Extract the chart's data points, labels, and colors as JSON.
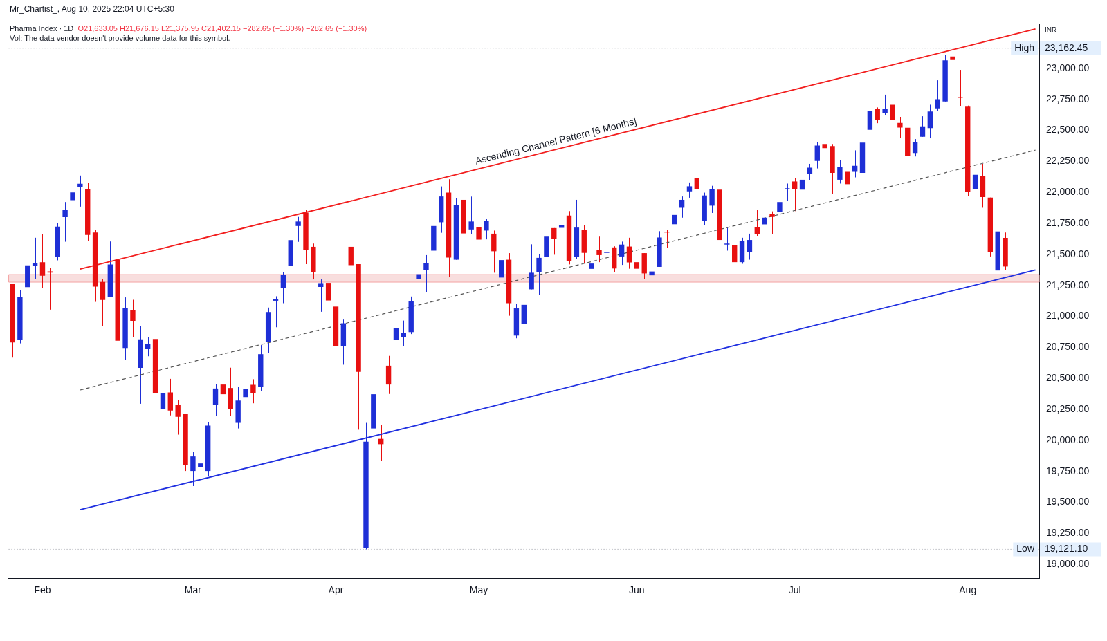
{
  "chart_data": {
    "type": "candlestick",
    "title": "Pharma Index · 1D",
    "subtitle": "O21,633.05  H21,676.15  L21,375.95  C21,402.15  −282.65 (−1.30%)  −282.65 (−1.30%)",
    "ylabel": "INR",
    "annotations": [
      "Mr_Chartist_, Aug 10, 2025 22:04 UTC+5:30",
      "Vol: The data vendor doesn't provide volume data for this symbol.",
      "Ascending Channel Pattern [6 Months]",
      "23,162.45",
      "19,121.10"
    ],
    "categories": [
      null,
      null,
      null,
      null,
      "Feb",
      null,
      null,
      null,
      null,
      null,
      null,
      null,
      null,
      null,
      null,
      null,
      null,
      null,
      null,
      null,
      null,
      null,
      null,
      null,
      "Mar",
      null,
      null,
      null,
      null,
      null,
      null,
      null,
      null,
      null,
      null,
      null,
      null,
      null,
      null,
      null,
      null,
      null,
      null,
      "Apr",
      null,
      null,
      null,
      null,
      null,
      null,
      null,
      null,
      null,
      null,
      null,
      null,
      null,
      null,
      null,
      null,
      null,
      null,
      "May",
      null,
      null,
      null,
      null,
      null,
      null,
      null,
      null,
      null,
      null,
      null,
      null,
      null,
      null,
      null,
      null,
      null,
      null,
      null,
      null,
      "Jun",
      null,
      null,
      null,
      null,
      null,
      null,
      null,
      null,
      null,
      null,
      null,
      null,
      null,
      null,
      null,
      null,
      null,
      null,
      null,
      null,
      "Jul",
      null,
      null,
      null,
      null,
      null,
      null,
      null,
      null,
      null,
      null,
      null,
      null,
      null,
      null,
      null,
      null,
      null,
      null,
      null,
      null,
      null,
      null,
      "Aug",
      null,
      null,
      null,
      null,
      null,
      null,
      null,
      null,
      null
    ],
    "ohlc": [
      [
        21259,
        21259,
        20667,
        20789
      ],
      [
        20809,
        21211,
        20782,
        21155
      ],
      [
        21236,
        21477,
        21197,
        21412
      ],
      [
        21404,
        21634,
        21299,
        21431
      ],
      [
        21437,
        21661,
        21228,
        21328
      ],
      [
        21362,
        21389,
        21054,
        21353
      ],
      [
        21481,
        21755,
        21452,
        21724
      ],
      [
        21801,
        21922,
        21602,
        21860
      ],
      [
        21937,
        22163,
        21906,
        22000
      ],
      [
        22040,
        22136,
        21885,
        22069
      ],
      [
        22023,
        22075,
        21609,
        21657
      ],
      [
        21676,
        21697,
        21117,
        21240
      ],
      [
        21278,
        21299,
        20924,
        21132
      ],
      [
        21155,
        21604,
        21155,
        21418
      ],
      [
        21456,
        21489,
        20667,
        20803
      ],
      [
        20745,
        21153,
        20650,
        21065
      ],
      [
        21052,
        21134,
        20830,
        20964
      ],
      [
        20584,
        20922,
        20295,
        20814
      ],
      [
        20738,
        20835,
        20678,
        20776
      ],
      [
        20818,
        20864,
        20297,
        20378
      ],
      [
        20253,
        20542,
        20217,
        20381
      ],
      [
        20387,
        20496,
        20201,
        20240
      ],
      [
        20287,
        20328,
        20046,
        20190
      ],
      [
        20215,
        20215,
        19753,
        19803
      ],
      [
        19753,
        19904,
        19631,
        19870
      ],
      [
        19786,
        19876,
        19631,
        19814
      ],
      [
        19753,
        20144,
        19709,
        20119
      ],
      [
        20284,
        20452,
        20196,
        20418
      ],
      [
        20450,
        20504,
        20322,
        20372
      ],
      [
        20422,
        20586,
        20196,
        20250
      ],
      [
        20141,
        20434,
        20096,
        20321
      ],
      [
        20349,
        20434,
        20171,
        20416
      ],
      [
        20448,
        20493,
        20299,
        20380
      ],
      [
        20434,
        20768,
        20400,
        20695
      ],
      [
        20796,
        21071,
        20707,
        21035
      ],
      [
        21126,
        21162,
        20912,
        21138
      ],
      [
        21231,
        21355,
        21106,
        21332
      ],
      [
        21409,
        21674,
        21355,
        21615
      ],
      [
        21729,
        21802,
        21601,
        21765
      ],
      [
        21836,
        21860,
        21421,
        21535
      ],
      [
        21561,
        21587,
        21298,
        21355
      ],
      [
        21237,
        21298,
        21037,
        21268
      ],
      [
        21270,
        21306,
        20997,
        21128
      ],
      [
        21079,
        21209,
        20699,
        20762
      ],
      [
        20762,
        20974,
        20610,
        20944
      ],
      [
        21561,
        21992,
        21367,
        21413
      ],
      [
        21421,
        21421,
        20086,
        20552
      ],
      [
        19130,
        20141,
        19121.1,
        19989
      ],
      [
        20096,
        20461,
        20070,
        20372
      ],
      [
        20012,
        20127,
        19834,
        19969
      ],
      [
        20602,
        20681,
        20374,
        20450
      ],
      [
        20812,
        20950,
        20657,
        20906
      ],
      [
        20835,
        20966,
        20762,
        20867
      ],
      [
        20873,
        21160,
        20857,
        21120
      ],
      [
        21300,
        21371,
        21071,
        21340
      ],
      [
        21371,
        21494,
        21195,
        21429
      ],
      [
        21530,
        21753,
        21415,
        21729
      ],
      [
        21759,
        22048,
        21674,
        21967
      ],
      [
        21998,
        22106,
        21315,
        21474
      ],
      [
        21457,
        21953,
        21457,
        21900
      ],
      [
        21940,
        21975,
        21559,
        21669
      ],
      [
        21701,
        21966,
        21661,
        21765
      ],
      [
        21720,
        21856,
        21486,
        21619
      ],
      [
        21692,
        21789,
        21621,
        21769
      ],
      [
        21667,
        21692,
        21352,
        21525
      ],
      [
        21313,
        21550,
        21313,
        21454
      ],
      [
        21457,
        21510,
        21005,
        21106
      ],
      [
        20845,
        21100,
        20823,
        21064
      ],
      [
        20940,
        21151,
        20573,
        21093
      ],
      [
        21218,
        21581,
        21218,
        21352
      ],
      [
        21355,
        21501,
        21173,
        21472
      ],
      [
        21479,
        21665,
        21324,
        21643
      ],
      [
        21712,
        21712,
        21497,
        21623
      ],
      [
        21714,
        22020,
        21656,
        21734
      ],
      [
        21813,
        21849,
        21419,
        21448
      ],
      [
        21479,
        21940,
        21461,
        21716
      ],
      [
        21698,
        21734,
        21428,
        21512
      ],
      [
        21383,
        21443,
        21169,
        21426
      ],
      [
        21534,
        21643,
        21437,
        21494
      ],
      [
        21512,
        21585,
        21439,
        21517
      ],
      [
        21556,
        21565,
        21355,
        21386
      ],
      [
        21483,
        21603,
        21415,
        21579
      ],
      [
        21563,
        21634,
        21384,
        21435
      ],
      [
        21437,
        21461,
        21255,
        21384
      ],
      [
        21510,
        21510,
        21300,
        21346
      ],
      [
        21331,
        21455,
        21310,
        21362
      ],
      [
        21399,
        21687,
        21399,
        21636
      ],
      [
        21683,
        21698,
        21552,
        21676
      ],
      [
        21743,
        21834,
        21692,
        21818
      ],
      [
        21876,
        21967,
        21796,
        21940
      ],
      [
        22008,
        22080,
        21957,
        22049
      ],
      [
        22117,
        22348,
        21962,
        22026
      ],
      [
        21771,
        21998,
        21738,
        21975
      ],
      [
        21893,
        22053,
        21834,
        22029
      ],
      [
        22022,
        22050,
        21512,
        21616
      ],
      [
        21579,
        21716,
        21530,
        21587
      ],
      [
        21576,
        21612,
        21388,
        21437
      ],
      [
        21437,
        21634,
        21424,
        21607
      ],
      [
        21521,
        21667,
        21457,
        21616
      ],
      [
        21718,
        21856,
        21649,
        21665
      ],
      [
        21742,
        21822,
        21705,
        21796
      ],
      [
        21825,
        21847,
        21661,
        21802
      ],
      [
        21844,
        21998,
        21825,
        21922
      ],
      [
        22026,
        22071,
        21931,
        22033
      ],
      [
        22088,
        22117,
        21849,
        22029
      ],
      [
        22022,
        22166,
        21997,
        22102
      ],
      [
        22150,
        22230,
        22099,
        22199
      ],
      [
        22254,
        22403,
        22193,
        22377
      ],
      [
        22390,
        22412,
        22259,
        22357
      ],
      [
        22374,
        22390,
        21986,
        22157
      ],
      [
        22102,
        22263,
        22071,
        22203
      ],
      [
        22166,
        22190,
        21971,
        22066
      ],
      [
        22166,
        22339,
        22121,
        22215
      ],
      [
        22157,
        22496,
        22113,
        22401
      ],
      [
        22505,
        22682,
        22368,
        22658
      ],
      [
        22671,
        22685,
        22558,
        22585
      ],
      [
        22640,
        22788,
        22624,
        22671
      ],
      [
        22707,
        22713,
        22509,
        22585
      ],
      [
        22560,
        22609,
        22436,
        22523
      ],
      [
        22521,
        22563,
        22268,
        22296
      ],
      [
        22317,
        22430,
        22290,
        22408
      ],
      [
        22449,
        22614,
        22449,
        22532
      ],
      [
        22518,
        22707,
        22436,
        22653
      ],
      [
        22678,
        22904,
        22655,
        22751
      ],
      [
        22733,
        23110,
        22733,
        23065
      ],
      [
        23096,
        23162.45,
        22992,
        23068
      ],
      [
        22766,
        22988,
        22696,
        22762
      ],
      [
        22691,
        22700,
        21968,
        22002
      ],
      [
        22029,
        22199,
        21884,
        22142
      ],
      [
        22135,
        22230,
        21876,
        21962
      ],
      [
        21958,
        21958,
        21483,
        21516
      ],
      [
        21370,
        21711,
        21324,
        21685
      ],
      [
        21633.05,
        21676.15,
        21375.95,
        21402.15
      ],
      null,
      null,
      null,
      null
    ],
    "series": [
      {
        "type": "line",
        "color": "#f21d1d",
        "values": [
          null,
          null,
          null,
          null,
          null,
          null,
          null,
          null,
          null,
          21381,
          null,
          null,
          null,
          null,
          null,
          null,
          null,
          null,
          null,
          null,
          null,
          null,
          null,
          null,
          null,
          null,
          null,
          null,
          null,
          null,
          null,
          null,
          null,
          null,
          null,
          null,
          null,
          null,
          null,
          null,
          null,
          null,
          null,
          null,
          null,
          null,
          null,
          null,
          null,
          null,
          null,
          null,
          null,
          null,
          null,
          null,
          null,
          null,
          null,
          null,
          null,
          null,
          null,
          null,
          null,
          null,
          null,
          null,
          null,
          null,
          null,
          null,
          null,
          null,
          null,
          null,
          null,
          null,
          null,
          null,
          null,
          null,
          null,
          null,
          null,
          null,
          null,
          null,
          null,
          null,
          null,
          null,
          null,
          null,
          null,
          null,
          null,
          null,
          null,
          null,
          null,
          null,
          null,
          null,
          null,
          null,
          null,
          null,
          null,
          null,
          null,
          null,
          null,
          null,
          null,
          null,
          null,
          null,
          null,
          null,
          null,
          null,
          null,
          null,
          null,
          null,
          null,
          null,
          null,
          null,
          null,
          null,
          null,
          null,
          null,
          null,
          23318
        ]
      },
      {
        "type": "line",
        "color": "#1f2fe0",
        "values": [
          null,
          null,
          null,
          null,
          null,
          null,
          null,
          null,
          null,
          19440,
          null,
          null,
          null,
          null,
          null,
          null,
          null,
          null,
          null,
          null,
          null,
          null,
          null,
          null,
          null,
          null,
          null,
          null,
          null,
          null,
          null,
          null,
          null,
          null,
          null,
          null,
          null,
          null,
          null,
          null,
          null,
          null,
          null,
          null,
          null,
          null,
          null,
          null,
          null,
          null,
          null,
          null,
          null,
          null,
          null,
          null,
          null,
          null,
          null,
          null,
          null,
          null,
          null,
          null,
          null,
          null,
          null,
          null,
          null,
          null,
          null,
          null,
          null,
          null,
          null,
          null,
          null,
          null,
          null,
          null,
          null,
          null,
          null,
          null,
          null,
          null,
          null,
          null,
          null,
          null,
          null,
          null,
          null,
          null,
          null,
          null,
          null,
          null,
          null,
          null,
          null,
          null,
          null,
          null,
          null,
          null,
          null,
          null,
          null,
          null,
          null,
          null,
          null,
          null,
          null,
          null,
          null,
          null,
          null,
          null,
          null,
          null,
          null,
          null,
          null,
          null,
          null,
          null,
          null,
          null,
          null,
          null,
          null,
          null,
          null,
          null,
          21374
        ]
      },
      {
        "type": "line",
        "color": "#555555",
        "line_style": "dashed",
        "values": [
          null,
          null,
          null,
          null,
          null,
          null,
          null,
          null,
          null,
          20406,
          null,
          null,
          null,
          null,
          null,
          null,
          null,
          null,
          null,
          null,
          null,
          null,
          null,
          null,
          null,
          null,
          null,
          null,
          null,
          null,
          null,
          null,
          null,
          null,
          null,
          null,
          null,
          null,
          null,
          null,
          null,
          null,
          null,
          null,
          null,
          null,
          null,
          null,
          null,
          null,
          null,
          null,
          null,
          null,
          null,
          null,
          null,
          null,
          null,
          null,
          null,
          null,
          null,
          null,
          null,
          null,
          null,
          null,
          null,
          null,
          null,
          null,
          null,
          null,
          null,
          null,
          null,
          null,
          null,
          null,
          null,
          null,
          null,
          null,
          null,
          null,
          null,
          null,
          null,
          null,
          null,
          null,
          null,
          null,
          null,
          null,
          null,
          null,
          null,
          null,
          null,
          null,
          null,
          null,
          null,
          null,
          null,
          null,
          null,
          null,
          null,
          null,
          null,
          null,
          null,
          null,
          null,
          null,
          null,
          null,
          null,
          null,
          null,
          null,
          null,
          null,
          null,
          null,
          null,
          null,
          null,
          null,
          null,
          null,
          null,
          null,
          22341
        ]
      }
    ],
    "ylim": [
      18888,
      23362
    ],
    "yticks": [
      {
        "value": 19000,
        "label": "19,000.00"
      },
      {
        "value": 19250,
        "label": "19,250.00"
      },
      {
        "value": 19500,
        "label": "19,500.00"
      },
      {
        "value": 19750,
        "label": "19,750.00"
      },
      {
        "value": 20000,
        "label": "20,000.00"
      },
      {
        "value": 20250,
        "label": "20,250.00"
      },
      {
        "value": 20500,
        "label": "20,500.00"
      },
      {
        "value": 20750,
        "label": "20,750.00"
      },
      {
        "value": 21000,
        "label": "21,000.00"
      },
      {
        "value": 21250,
        "label": "21,250.00"
      },
      {
        "value": 21500,
        "label": "21,500.00"
      },
      {
        "value": 21750,
        "label": "21,750.00"
      },
      {
        "value": 22000,
        "label": "22,000.00"
      },
      {
        "value": 22250,
        "label": "22,250.00"
      },
      {
        "value": 22500,
        "label": "22,500.00"
      },
      {
        "value": 22750,
        "label": "22,750.00"
      },
      {
        "value": 23000,
        "label": "23,000.00"
      }
    ],
    "ref_lines": [
      {
        "axis": "y",
        "value": 23162.45,
        "label": "High",
        "line_style": "dotted",
        "color": "#9598a1"
      },
      {
        "axis": "y",
        "value": 19121.1,
        "label": "Low",
        "line_style": "dotted",
        "color": "#9598a1"
      }
    ],
    "bands": [
      {
        "axis": "y",
        "from": 21276,
        "to": 21337,
        "color": "#f8dede"
      }
    ],
    "grid": false,
    "legend": false
  }
}
